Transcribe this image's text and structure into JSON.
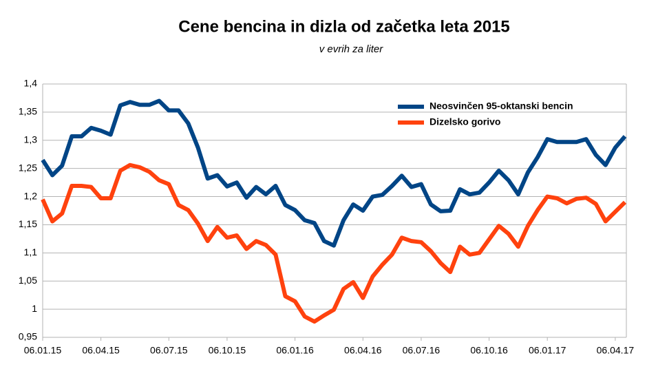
{
  "chart_data": {
    "type": "line",
    "title": "Cene bencina in dizla od začetka leta 2015",
    "subtitle": "v evrih za liter",
    "categories": [
      "06.01.15",
      null,
      null,
      null,
      null,
      null,
      "06.04.15",
      null,
      null,
      null,
      null,
      null,
      null,
      "06.07.15",
      null,
      null,
      null,
      null,
      null,
      "06.10.15",
      null,
      null,
      null,
      null,
      null,
      null,
      "06.01.16",
      null,
      null,
      null,
      null,
      null,
      null,
      "06.04.16",
      null,
      null,
      null,
      null,
      null,
      "06.07.16",
      null,
      null,
      null,
      null,
      null,
      null,
      "06.10.16",
      null,
      null,
      null,
      null,
      null,
      "06.01.17",
      null,
      null,
      null,
      null,
      null,
      null,
      "06.04.17",
      null
    ],
    "series": [
      {
        "name": "Neosvinčen 95-oktanski bencin",
        "color": "#004586",
        "values": [
          1.265,
          1.238,
          1.255,
          1.307,
          1.307,
          1.322,
          1.317,
          1.31,
          1.362,
          1.368,
          1.363,
          1.363,
          1.37,
          1.353,
          1.353,
          1.33,
          1.287,
          1.232,
          1.238,
          1.218,
          1.225,
          1.198,
          1.217,
          1.204,
          1.219,
          1.185,
          1.176,
          1.158,
          1.153,
          1.121,
          1.113,
          1.158,
          1.186,
          1.175,
          1.2,
          1.203,
          1.219,
          1.237,
          1.217,
          1.222,
          1.186,
          1.174,
          1.175,
          1.213,
          1.204,
          1.207,
          1.225,
          1.246,
          1.229,
          1.204,
          1.243,
          1.27,
          1.302,
          1.297,
          1.297,
          1.297,
          1.302,
          1.274,
          1.256,
          1.287,
          1.307
        ]
      },
      {
        "name": "Dizelsko gorivo",
        "color": "#ff420e",
        "values": [
          1.195,
          1.156,
          1.17,
          1.219,
          1.219,
          1.217,
          1.197,
          1.197,
          1.246,
          1.256,
          1.252,
          1.244,
          1.229,
          1.222,
          1.185,
          1.176,
          1.152,
          1.121,
          1.146,
          1.127,
          1.131,
          1.107,
          1.121,
          1.114,
          1.097,
          1.023,
          1.014,
          0.987,
          0.978,
          0.989,
          0.999,
          1.036,
          1.048,
          1.02,
          1.058,
          1.079,
          1.097,
          1.127,
          1.121,
          1.119,
          1.103,
          1.082,
          1.066,
          1.111,
          1.097,
          1.1,
          1.124,
          1.148,
          1.134,
          1.111,
          1.148,
          1.176,
          1.2,
          1.197,
          1.188,
          1.196,
          1.198,
          1.187,
          1.156,
          1.173,
          1.19
        ]
      }
    ],
    "ylim": [
      0.95,
      1.4
    ],
    "yticks": [
      {
        "value": 0.95,
        "label": "0,95"
      },
      1,
      {
        "value": 1.05,
        "label": "1,05"
      },
      {
        "value": 1.1,
        "label": "1,1"
      },
      {
        "value": 1.15,
        "label": "1,15"
      },
      {
        "value": 1.2,
        "label": "1,2"
      },
      {
        "value": 1.25,
        "label": "1,25"
      },
      {
        "value": 1.3,
        "label": "1,3"
      },
      {
        "value": 1.35,
        "label": "1,35"
      },
      {
        "value": 1.4,
        "label": "1,4"
      }
    ],
    "grid": true,
    "legend": "top-right"
  }
}
